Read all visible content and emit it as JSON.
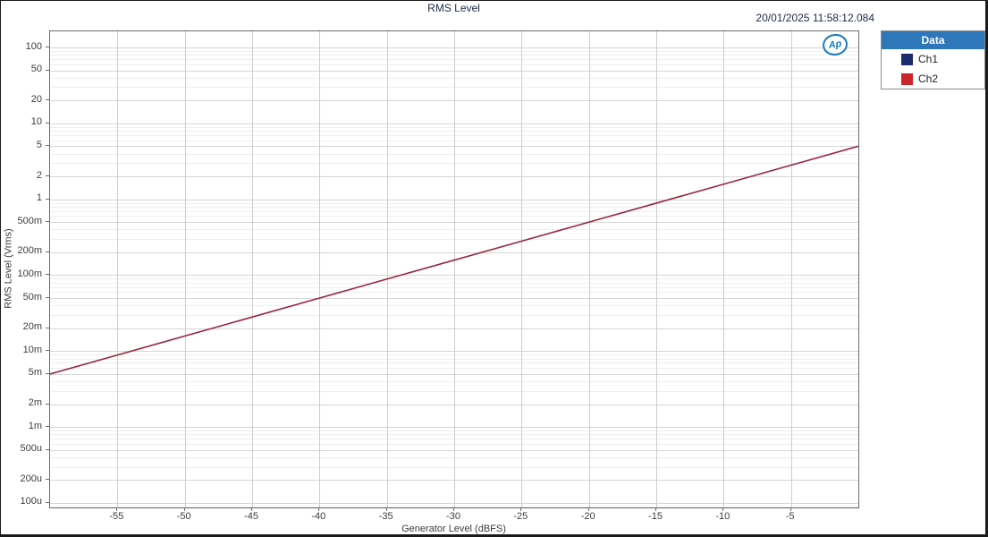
{
  "window": {
    "title": "RMS Level",
    "timestamp": "20/01/2025 11:58:12.084"
  },
  "logo": {
    "text": "Ap"
  },
  "legend": {
    "header": "Data",
    "items": [
      {
        "label": "Ch1",
        "color": "#1B2C6E"
      },
      {
        "label": "Ch2",
        "color": "#C9252B"
      }
    ]
  },
  "colors": {
    "legend_header_bg": "#2E77B8",
    "grid_major": "#d6d6d6",
    "grid_minor": "#eeeeee",
    "grid_vertical": "#cccccc",
    "plot_border": "#6b6b6b",
    "title_text": "#1d2a45",
    "tick_text": "#3c3c3c",
    "logo_blue": "#1778BE"
  },
  "chart_data": {
    "type": "line",
    "title": "RMS Level",
    "xlabel": "Generator Level (dBFS)",
    "ylabel": "RMS Level (Vrms)",
    "grid": true,
    "legend_position": "top-right-outside",
    "x_axis": {
      "scale": "linear",
      "min": -60,
      "max": 0,
      "ticks": [
        {
          "value": -55,
          "label": "-55"
        },
        {
          "value": -50,
          "label": "-50"
        },
        {
          "value": -45,
          "label": "-45"
        },
        {
          "value": -40,
          "label": "-40"
        },
        {
          "value": -35,
          "label": "-35"
        },
        {
          "value": -30,
          "label": "-30"
        },
        {
          "value": -25,
          "label": "-25"
        },
        {
          "value": -20,
          "label": "-20"
        },
        {
          "value": -15,
          "label": "-15"
        },
        {
          "value": -10,
          "label": "-10"
        },
        {
          "value": -5,
          "label": "-5"
        }
      ]
    },
    "y_axis": {
      "scale": "log",
      "min": 8.73e-05,
      "max": 163,
      "minor_multipliers": [
        3,
        4,
        6,
        7,
        8,
        9
      ],
      "ticks": [
        {
          "value": 100,
          "label": "100"
        },
        {
          "value": 50,
          "label": "50"
        },
        {
          "value": 20,
          "label": "20"
        },
        {
          "value": 10,
          "label": "10"
        },
        {
          "value": 5,
          "label": "5"
        },
        {
          "value": 2,
          "label": "2"
        },
        {
          "value": 1,
          "label": "1"
        },
        {
          "value": 0.5,
          "label": "500m"
        },
        {
          "value": 0.2,
          "label": "200m"
        },
        {
          "value": 0.1,
          "label": "100m"
        },
        {
          "value": 0.05,
          "label": "50m"
        },
        {
          "value": 0.02,
          "label": "20m"
        },
        {
          "value": 0.01,
          "label": "10m"
        },
        {
          "value": 0.005,
          "label": "5m"
        },
        {
          "value": 0.002,
          "label": "2m"
        },
        {
          "value": 0.001,
          "label": "1m"
        },
        {
          "value": 0.0005,
          "label": "500u"
        },
        {
          "value": 0.0002,
          "label": "200u"
        },
        {
          "value": 0.0001,
          "label": "100u"
        }
      ]
    },
    "series": [
      {
        "name": "Ch1",
        "color": "#1B2C6E",
        "x": [
          -60,
          -55,
          -50,
          -45,
          -40,
          -35,
          -30,
          -25,
          -20,
          -15,
          -10,
          -5,
          0
        ],
        "y": [
          0.005,
          0.008891,
          0.015811,
          0.028117,
          0.05,
          0.088914,
          0.158114,
          0.281171,
          0.5,
          0.88914,
          1.581139,
          2.811707,
          5
        ]
      },
      {
        "name": "Ch2",
        "color": "#C9252B",
        "x": [
          -60,
          -55,
          -50,
          -45,
          -40,
          -35,
          -30,
          -25,
          -20,
          -15,
          -10,
          -5,
          0
        ],
        "y": [
          0.005,
          0.008891,
          0.015811,
          0.028117,
          0.05,
          0.088914,
          0.158114,
          0.281171,
          0.5,
          0.88914,
          1.581139,
          2.811707,
          5
        ]
      }
    ]
  }
}
